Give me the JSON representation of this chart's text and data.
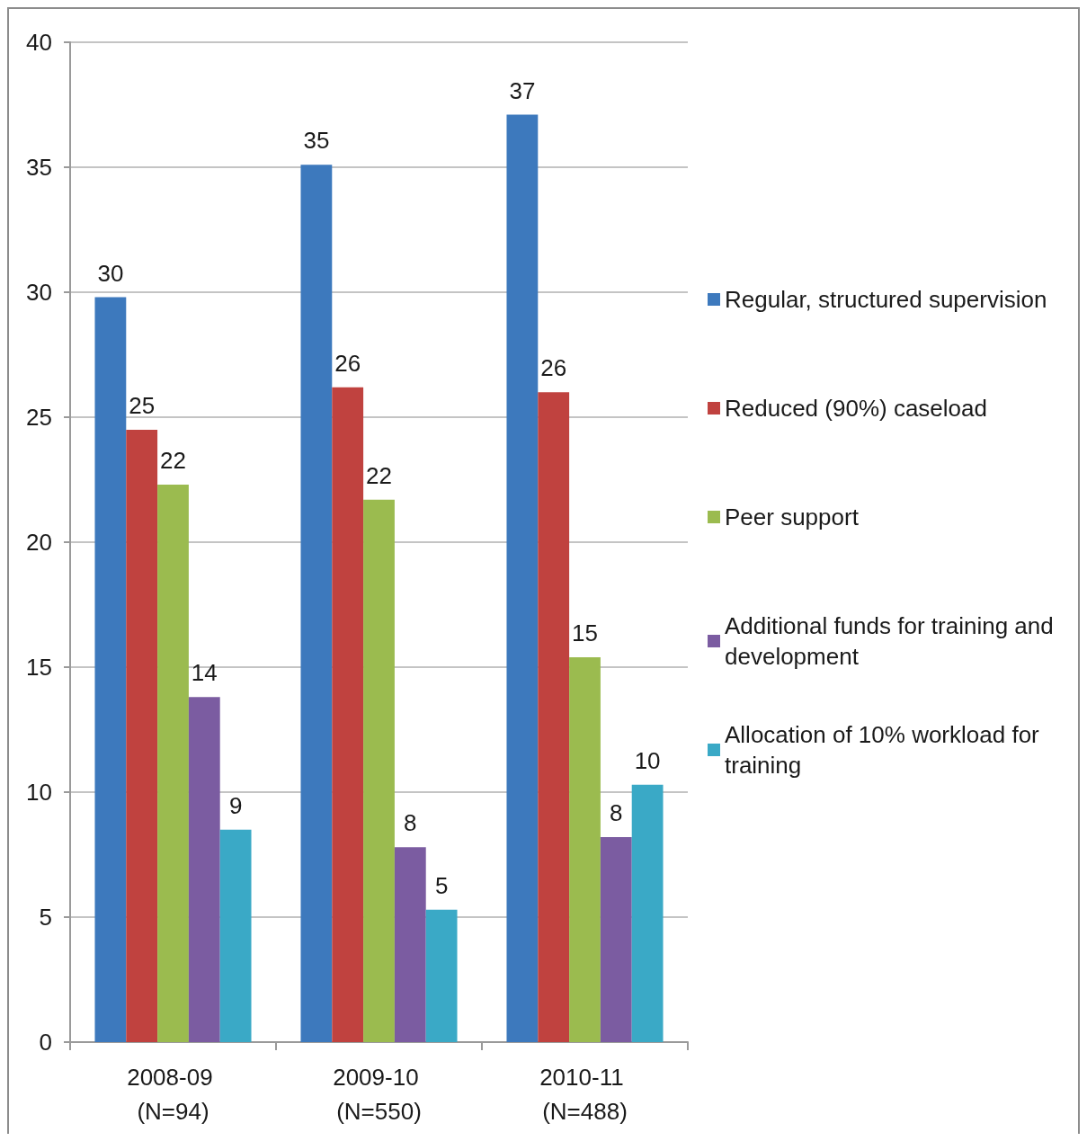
{
  "chart_data": {
    "type": "bar",
    "categories": [
      "2008-09 (N=94)",
      "2009-10 (N=550)",
      "2010-11 (N=488)"
    ],
    "series": [
      {
        "name": "Regular, structured supervision",
        "color": "#3d79bd",
        "values": [
          29.8,
          35.1,
          37.1
        ],
        "value_labels": [
          "30",
          "35",
          "37"
        ]
      },
      {
        "name": "Reduced (90%) caseload",
        "color": "#c0423f",
        "values": [
          24.5,
          26.2,
          26.0
        ],
        "value_labels": [
          "25",
          "26",
          "26"
        ]
      },
      {
        "name": "Peer support",
        "color": "#9bbb4f",
        "values": [
          22.3,
          21.7,
          15.4
        ],
        "value_labels": [
          "22",
          "22",
          "15"
        ]
      },
      {
        "name": "Additional funds for training and development",
        "color": "#7b5ca1",
        "values": [
          13.8,
          7.8,
          8.2
        ],
        "value_labels": [
          "14",
          "8",
          "8"
        ]
      },
      {
        "name": "Allocation of 10% workload for training",
        "color": "#3aa9c6",
        "values": [
          8.5,
          5.3,
          10.3
        ],
        "value_labels": [
          "9",
          "5",
          "10"
        ]
      }
    ],
    "ylim": [
      0,
      40
    ],
    "yticks": [
      0,
      5,
      10,
      15,
      20,
      25,
      30,
      35,
      40
    ],
    "grid": "y",
    "legend": "right"
  }
}
